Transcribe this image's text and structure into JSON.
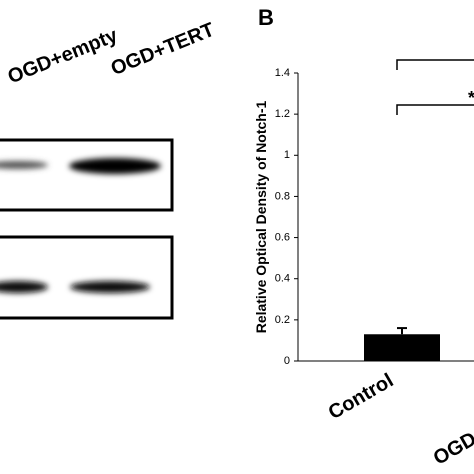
{
  "blot_labels": [
    "OGD+empty",
    "OGD+TERT"
  ],
  "panel_label": "B",
  "chart_data": {
    "type": "bar",
    "y_label": "Relative Optical Density of Notch-1",
    "categories": [
      "Control",
      "OGD"
    ],
    "values": [
      0.13,
      null
    ],
    "errors": [
      0.03,
      null
    ],
    "color": "#000000",
    "ylim": [
      0,
      1.4
    ],
    "yticks": [
      0,
      0.2,
      0.4,
      0.6,
      0.8,
      1,
      1.2,
      1.4
    ],
    "annotations": [
      "*"
    ]
  }
}
